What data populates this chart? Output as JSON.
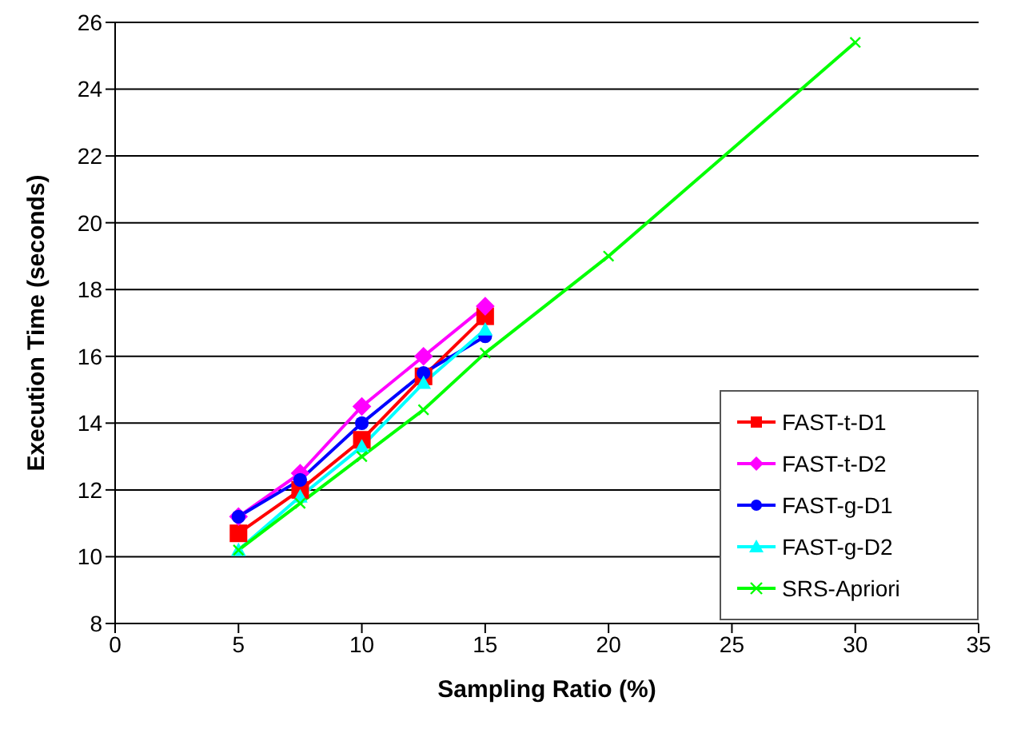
{
  "chart_data": {
    "type": "line",
    "xlabel": "Sampling Ratio (%)",
    "ylabel": "Execution Time (seconds)",
    "xlim": [
      0,
      35
    ],
    "xticks": [
      0,
      5,
      10,
      15,
      20,
      25,
      30,
      35
    ],
    "ylim": [
      8,
      26
    ],
    "yticks": [
      8,
      10,
      12,
      14,
      16,
      18,
      20,
      22,
      24,
      26
    ],
    "grid": "y",
    "legend": "bottom right",
    "series": [
      {
        "name": "FAST-t-D1",
        "color": "#ff0000",
        "marker": "square",
        "x": [
          5,
          7.5,
          10,
          12.5,
          15
        ],
        "values": [
          10.7,
          12.0,
          13.5,
          15.4,
          17.2
        ]
      },
      {
        "name": "FAST-t-D2",
        "color": "#ff00ff",
        "marker": "diamond",
        "x": [
          5,
          7.5,
          10,
          12.5,
          15
        ],
        "values": [
          11.2,
          12.5,
          14.5,
          16.0,
          17.5
        ]
      },
      {
        "name": "FAST-g-D1",
        "color": "#0000ff",
        "marker": "circle",
        "x": [
          5,
          7.5,
          10,
          12.5,
          15
        ],
        "values": [
          11.2,
          12.3,
          14.0,
          15.5,
          16.6
        ]
      },
      {
        "name": "FAST-g-D2",
        "color": "#00ffff",
        "marker": "triangle",
        "x": [
          5,
          7.5,
          10,
          12.5,
          15
        ],
        "values": [
          10.2,
          11.8,
          13.3,
          15.2,
          16.8
        ]
      },
      {
        "name": "SRS-Apriori",
        "color": "#00ff00",
        "marker": "cross",
        "x": [
          5,
          7.5,
          10,
          12.5,
          15,
          20,
          30
        ],
        "values": [
          10.2,
          11.6,
          13.0,
          14.4,
          16.1,
          19.0,
          25.4
        ]
      }
    ]
  }
}
